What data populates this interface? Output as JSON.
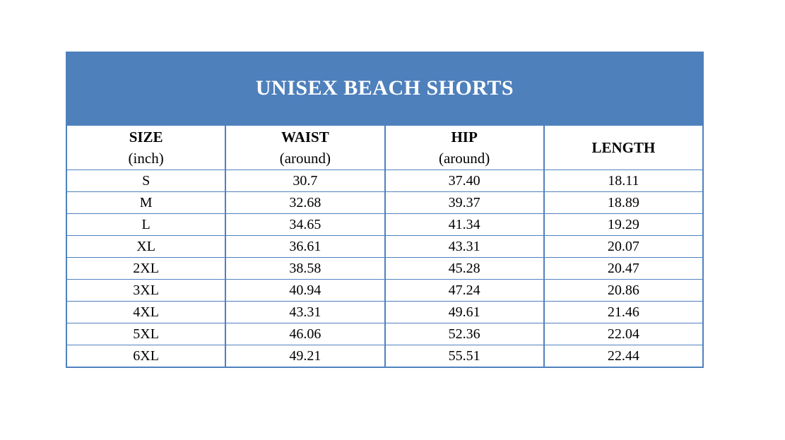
{
  "title": "UNISEX BEACH SHORTS",
  "colors": {
    "band": "#4e80bc",
    "grid": "#4f81bd",
    "title_text": "#ffffff",
    "text": "#000000"
  },
  "table": {
    "columns": [
      {
        "name": "SIZE",
        "sub": "(inch)"
      },
      {
        "name": "WAIST",
        "sub": "(around)"
      },
      {
        "name": "HIP",
        "sub": "(around)"
      },
      {
        "name": "LENGTH",
        "sub": ""
      }
    ],
    "rows": [
      {
        "size": "S",
        "waist": "30.7",
        "hip": "37.40",
        "length": "18.11"
      },
      {
        "size": "M",
        "waist": "32.68",
        "hip": "39.37",
        "length": "18.89"
      },
      {
        "size": "L",
        "waist": "34.65",
        "hip": "41.34",
        "length": "19.29"
      },
      {
        "size": "XL",
        "waist": "36.61",
        "hip": "43.31",
        "length": "20.07"
      },
      {
        "size": "2XL",
        "waist": "38.58",
        "hip": "45.28",
        "length": "20.47"
      },
      {
        "size": "3XL",
        "waist": "40.94",
        "hip": "47.24",
        "length": "20.86"
      },
      {
        "size": "4XL",
        "waist": "43.31",
        "hip": "49.61",
        "length": "21.46"
      },
      {
        "size": "5XL",
        "waist": "46.06",
        "hip": "52.36",
        "length": "22.04"
      },
      {
        "size": "6XL",
        "waist": "49.21",
        "hip": "55.51",
        "length": "22.44"
      }
    ]
  }
}
